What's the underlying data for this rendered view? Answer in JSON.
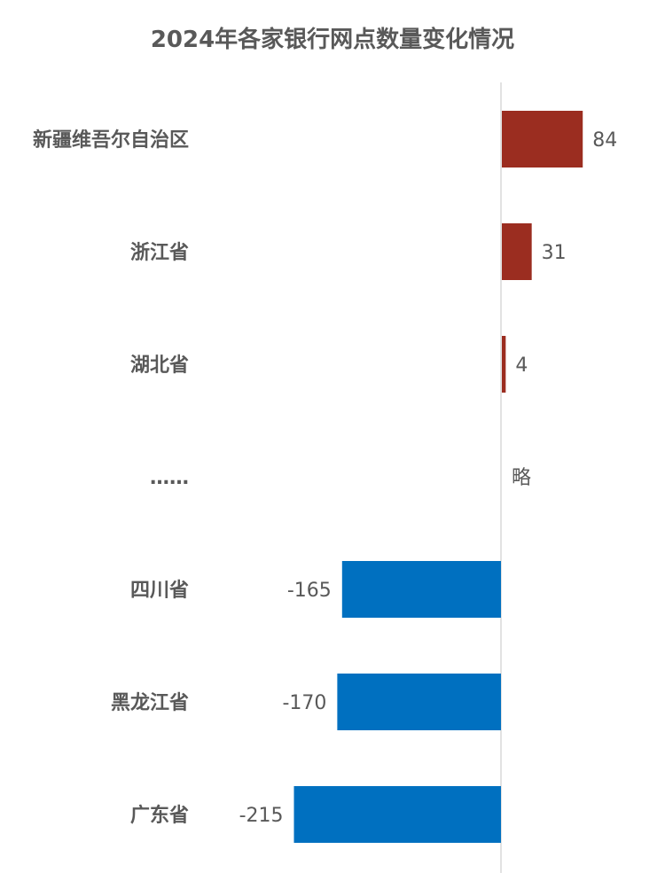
{
  "chart_data": {
    "type": "bar",
    "orientation": "horizontal",
    "title": "2024年各家银行网点数量变化情况",
    "categories": [
      "新疆维吾尔自治区",
      "浙江省",
      "湖北省",
      "……",
      "四川省",
      "黑龙江省",
      "广东省"
    ],
    "values": [
      84,
      31,
      4,
      null,
      -165,
      -170,
      -215
    ],
    "data_labels": [
      "84",
      "31",
      "4",
      "略",
      "-165",
      "-170",
      "-215"
    ],
    "colors": {
      "positive": "#9b2d20",
      "negative": "#0070c0",
      "axis": "#d9d9d9",
      "text": "#595959"
    },
    "grid": false,
    "legend": "none"
  }
}
